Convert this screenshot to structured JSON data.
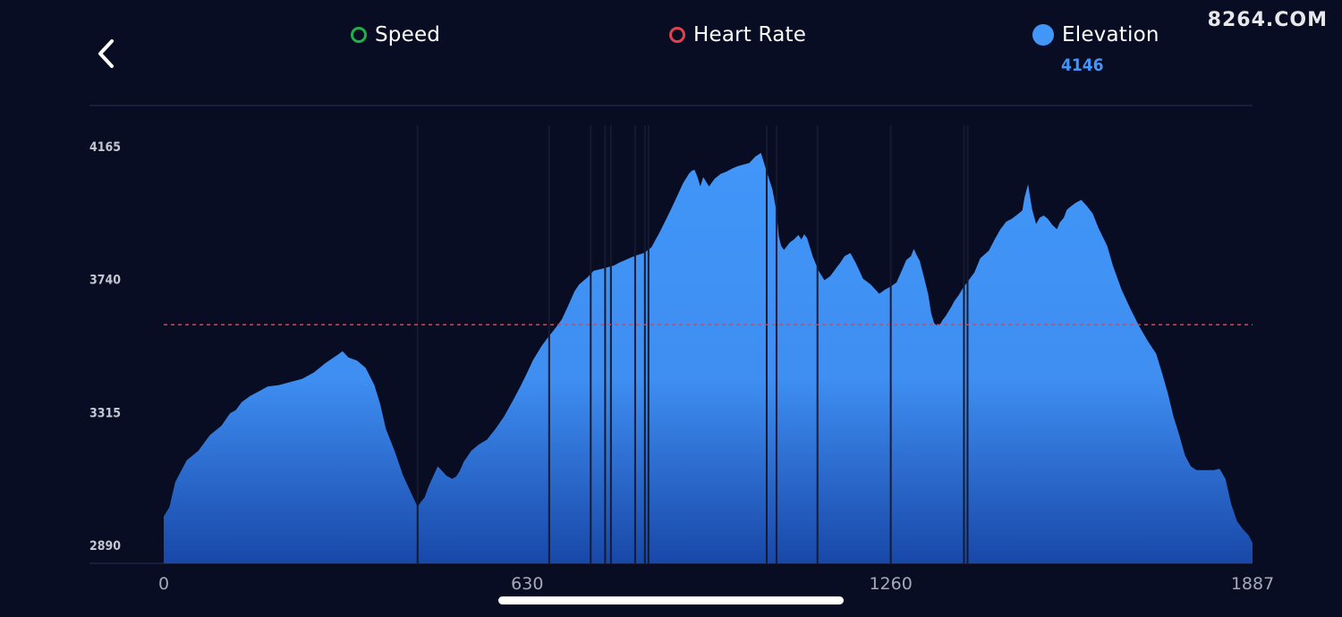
{
  "header": {
    "back_icon": "chevron-left-icon",
    "watermark": "8264.COM"
  },
  "legend": [
    {
      "label": "Speed",
      "color": "#20b04a",
      "style": "ring"
    },
    {
      "label": "Heart Rate",
      "color": "#e0424f",
      "style": "ring"
    },
    {
      "label": "Elevation",
      "color": "#4196f8",
      "style": "dot"
    }
  ],
  "readout": {
    "elevation": "4146"
  },
  "chart_data": {
    "type": "area",
    "xlim": [
      0,
      1887
    ],
    "ylim": [
      2830,
      4230
    ],
    "x_ticks": [
      "0",
      "630",
      "1260",
      "1887"
    ],
    "y_ticks": [
      "4165",
      "3740",
      "3315",
      "2890"
    ],
    "grid": "top rule line only",
    "reference_line": {
      "color": "#e0424f",
      "style": "dashed",
      "y": 3593
    },
    "colors": {
      "fill_top": "#4196f8",
      "fill_bottom": "#1848a8",
      "background": "#080d24"
    },
    "series": [
      {
        "type": "area",
        "x": [
          0,
          10,
          20,
          40,
          60,
          80,
          100,
          115,
          125,
          135,
          150,
          165,
          180,
          200,
          220,
          240,
          260,
          280,
          300,
          310,
          320,
          335,
          350,
          365,
          375,
          385,
          400,
          415,
          430,
          440,
          445,
          452,
          460,
          475,
          490,
          500,
          507,
          513,
          520,
          533,
          546,
          560,
          575,
          590,
          605,
          618,
          630,
          640,
          655,
          665,
          680,
          690,
          700,
          712,
          720,
          735,
          745,
          760,
          770,
          780,
          790,
          800,
          810,
          820,
          832,
          845,
          860,
          872,
          880,
          890,
          900,
          910,
          915,
          920,
          925,
          930,
          935,
          945,
          955,
          965,
          975,
          985,
          995,
          1005,
          1015,
          1025,
          1035,
          1045,
          1055,
          1062,
          1066,
          1070,
          1075,
          1085,
          1092,
          1100,
          1105,
          1110,
          1115,
          1125,
          1135,
          1145,
          1155,
          1162,
          1167,
          1172,
          1180,
          1190,
          1200,
          1212,
          1225,
          1240,
          1250,
          1260,
          1270,
          1280,
          1287,
          1295,
          1300,
          1305,
          1310,
          1318,
          1325,
          1330,
          1335,
          1340,
          1345,
          1350,
          1355,
          1360,
          1365,
          1370,
          1378,
          1385,
          1395,
          1405,
          1415,
          1430,
          1440,
          1450,
          1460,
          1470,
          1480,
          1488,
          1492,
          1498,
          1505,
          1512,
          1518,
          1525,
          1532,
          1540,
          1548,
          1553,
          1560,
          1565,
          1570,
          1580,
          1590,
          1600,
          1610,
          1620,
          1635,
          1645,
          1660,
          1675,
          1690,
          1705,
          1720,
          1730,
          1740,
          1750,
          1760,
          1770,
          1780,
          1790,
          1800,
          1810,
          1820,
          1830,
          1840,
          1850,
          1860,
          1870,
          1880,
          1887
        ],
        "y": [
          2980,
          3010,
          3090,
          3160,
          3190,
          3240,
          3270,
          3310,
          3320,
          3345,
          3365,
          3380,
          3395,
          3400,
          3410,
          3420,
          3440,
          3470,
          3495,
          3508,
          3488,
          3478,
          3455,
          3400,
          3340,
          3260,
          3190,
          3110,
          3050,
          3010,
          3025,
          3040,
          3080,
          3140,
          3110,
          3100,
          3108,
          3125,
          3155,
          3190,
          3210,
          3225,
          3260,
          3300,
          3350,
          3395,
          3440,
          3480,
          3525,
          3550,
          3585,
          3610,
          3650,
          3700,
          3722,
          3745,
          3765,
          3772,
          3777,
          3782,
          3792,
          3800,
          3808,
          3815,
          3822,
          3840,
          3890,
          3935,
          3965,
          4005,
          4045,
          4075,
          4085,
          4088,
          4065,
          4035,
          4065,
          4035,
          4060,
          4075,
          4082,
          4092,
          4100,
          4105,
          4110,
          4130,
          4142,
          4082,
          4025,
          3955,
          3875,
          3845,
          3832,
          3856,
          3865,
          3880,
          3865,
          3882,
          3870,
          3810,
          3765,
          3735,
          3748,
          3765,
          3778,
          3790,
          3812,
          3822,
          3788,
          3740,
          3722,
          3692,
          3705,
          3715,
          3728,
          3770,
          3800,
          3812,
          3835,
          3815,
          3798,
          3742,
          3690,
          3630,
          3598,
          3590,
          3592,
          3608,
          3620,
          3635,
          3650,
          3668,
          3688,
          3710,
          3735,
          3760,
          3805,
          3830,
          3865,
          3898,
          3922,
          3932,
          3946,
          3958,
          4000,
          4042,
          3962,
          3915,
          3935,
          3942,
          3932,
          3912,
          3898,
          3920,
          3935,
          3960,
          3968,
          3982,
          3992,
          3972,
          3948,
          3902,
          3845,
          3782,
          3705,
          3645,
          3590,
          3542,
          3500,
          3440,
          3375,
          3300,
          3240,
          3175,
          3140,
          3128,
          3128,
          3128,
          3128,
          3132,
          3100,
          3020,
          2965,
          2940,
          2920,
          2895
        ]
      }
    ],
    "markers": [
      {
        "x": 440,
        "style": "single"
      },
      {
        "x": 668,
        "style": "single"
      },
      {
        "x": 740,
        "style": "single"
      },
      {
        "x": 765,
        "style": "single"
      },
      {
        "x": 775,
        "style": "single"
      },
      {
        "x": 817,
        "style": "single"
      },
      {
        "x": 837,
        "style": "double"
      },
      {
        "x": 1045,
        "style": "single"
      },
      {
        "x": 1062,
        "style": "single"
      },
      {
        "x": 1133,
        "style": "single"
      },
      {
        "x": 1260,
        "style": "single"
      },
      {
        "x": 1390,
        "style": "double"
      }
    ]
  }
}
